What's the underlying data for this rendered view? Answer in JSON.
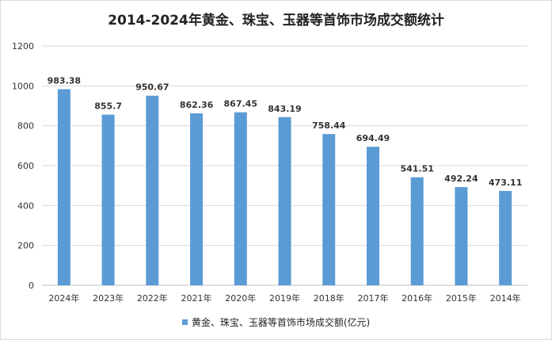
{
  "chart_data": {
    "type": "bar",
    "title": "2014-2024年黄金、珠宝、玉器等首饰市场成交额统计",
    "categories": [
      "2024年",
      "2023年",
      "2022年",
      "2021年",
      "2020年",
      "2019年",
      "2018年",
      "2017年",
      "2016年",
      "2015年",
      "2014年"
    ],
    "series": [
      {
        "name": "黄金、珠宝、玉器等首饰市场成交额(亿元)",
        "values": [
          983.38,
          855.7,
          950.67,
          862.36,
          867.45,
          843.19,
          758.44,
          694.49,
          541.51,
          492.24,
          473.11
        ],
        "value_labels": [
          "983.38",
          "855.7",
          "950.67",
          "862.36",
          "867.45",
          "843.19",
          "758.44",
          "694.49",
          "541.51",
          "492.24",
          "473.11"
        ],
        "color": "#5b9bd5"
      }
    ],
    "ylim": [
      0,
      1200
    ],
    "yticks": [
      0,
      200,
      400,
      600,
      800,
      1000,
      1200
    ],
    "grid": true,
    "legend": "bottom"
  }
}
